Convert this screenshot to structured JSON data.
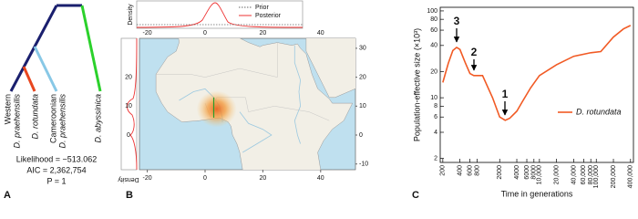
{
  "panels": {
    "tree": {
      "label": "A",
      "taxa": [
        [
          "Western",
          "D. praehensilis"
        ],
        [
          "D. rotundata"
        ],
        [
          "Cameroonian",
          "D. praehensilis"
        ],
        [
          "D. abyssinica"
        ]
      ],
      "stats": [
        "Likelihood = −513.062",
        "AIC = 2,362,754",
        "P = 1"
      ]
    },
    "map": {
      "label": "B",
      "legend": [
        "Prior",
        "Posterior"
      ],
      "density_label": "Density",
      "x_ticks": [
        -20,
        0,
        20,
        40
      ],
      "y_ticks": [
        30,
        20,
        10,
        0,
        -10
      ],
      "density_ticks": [
        20,
        10,
        0
      ]
    }
  },
  "chart_data": {
    "type": "line",
    "label": "C",
    "xlabel": "Time in generations",
    "ylabel": "Population-effective size (×10³)",
    "xlog": true,
    "ylog": true,
    "grid": false,
    "legend": "center-right",
    "annotations": [
      "3",
      "2",
      "1"
    ],
    "x": [
      200,
      250,
      300,
      350,
      400,
      500,
      600,
      700,
      1000,
      1500,
      2000,
      2500,
      3000,
      4000,
      5000,
      7000,
      10000,
      20000,
      40000,
      80000,
      120000,
      200000,
      300000,
      400000
    ],
    "series": [
      {
        "name": "D. rotundata",
        "color": "#f15a24",
        "values": [
          15,
          25,
          35,
          38,
          36,
          25,
          19,
          18,
          18,
          10,
          6,
          5.5,
          5.8,
          7,
          9,
          13,
          18,
          24,
          30,
          33,
          34,
          50,
          62,
          68
        ]
      }
    ],
    "xlim": [
      180,
      450000
    ],
    "ylim": [
      1.8,
      110
    ],
    "xticks": [
      200,
      400,
      600,
      800,
      2000,
      4000,
      6000,
      8000,
      {
        "value": 10000,
        "label": "10,000"
      },
      {
        "value": 20000,
        "label": "20,000"
      },
      {
        "value": 40000,
        "label": "40,000"
      },
      {
        "value": 60000,
        "label": "60,000"
      },
      {
        "value": 80000,
        "label": "80,000"
      },
      {
        "value": 100000,
        "label": "100,000"
      },
      {
        "value": 200000,
        "label": "200,000"
      },
      {
        "value": 400000,
        "label": "400,000"
      }
    ],
    "yticks": [
      2,
      4,
      6,
      8,
      10,
      20,
      40,
      60,
      80,
      100
    ]
  }
}
